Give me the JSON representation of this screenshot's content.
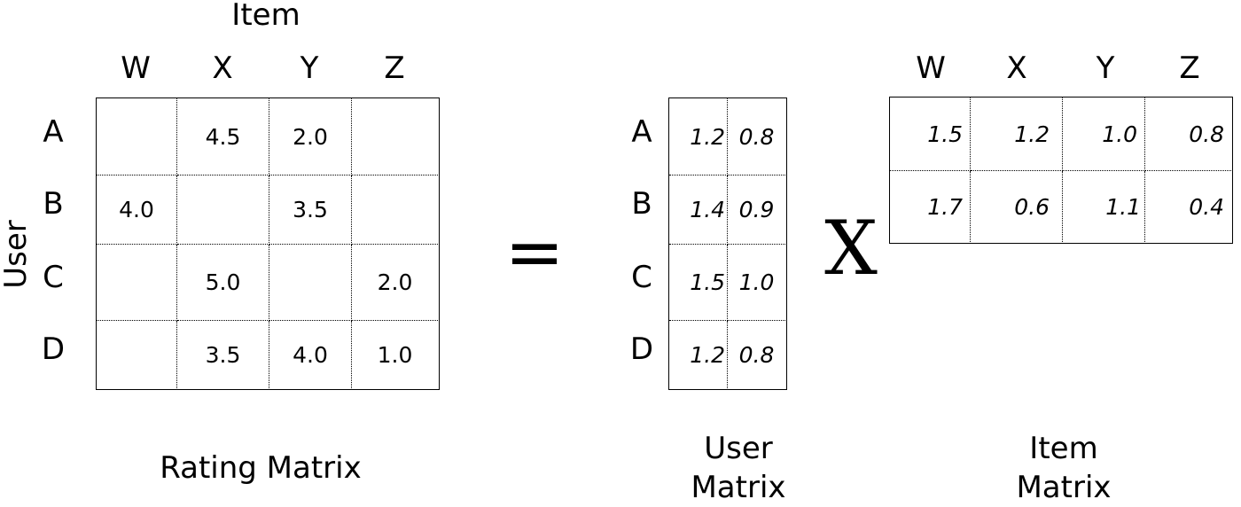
{
  "rating": {
    "axis_item": "Item",
    "axis_user": "User",
    "cols": [
      "W",
      "X",
      "Y",
      "Z"
    ],
    "rows": [
      "A",
      "B",
      "C",
      "D"
    ],
    "cells": [
      [
        "",
        "4.5",
        "2.0",
        ""
      ],
      [
        "4.0",
        "",
        "3.5",
        ""
      ],
      [
        "",
        "5.0",
        "",
        "2.0"
      ],
      [
        "",
        "3.5",
        "4.0",
        "1.0"
      ]
    ],
    "title": "Rating Matrix"
  },
  "equals": "=",
  "times": "X",
  "user_matrix": {
    "rows": [
      "A",
      "B",
      "C",
      "D"
    ],
    "cells": [
      [
        "1.2",
        "0.8"
      ],
      [
        "1.4",
        "0.9"
      ],
      [
        "1.5",
        "1.0"
      ],
      [
        "1.2",
        "0.8"
      ]
    ],
    "title_line1": "User",
    "title_line2": "Matrix"
  },
  "item_matrix": {
    "cols": [
      "W",
      "X",
      "Y",
      "Z"
    ],
    "cells": [
      [
        "1.5",
        "1.2",
        "1.0",
        "0.8"
      ],
      [
        "1.7",
        "0.6",
        "1.1",
        "0.4"
      ]
    ],
    "title_line1": "Item",
    "title_line2": "Matrix"
  }
}
